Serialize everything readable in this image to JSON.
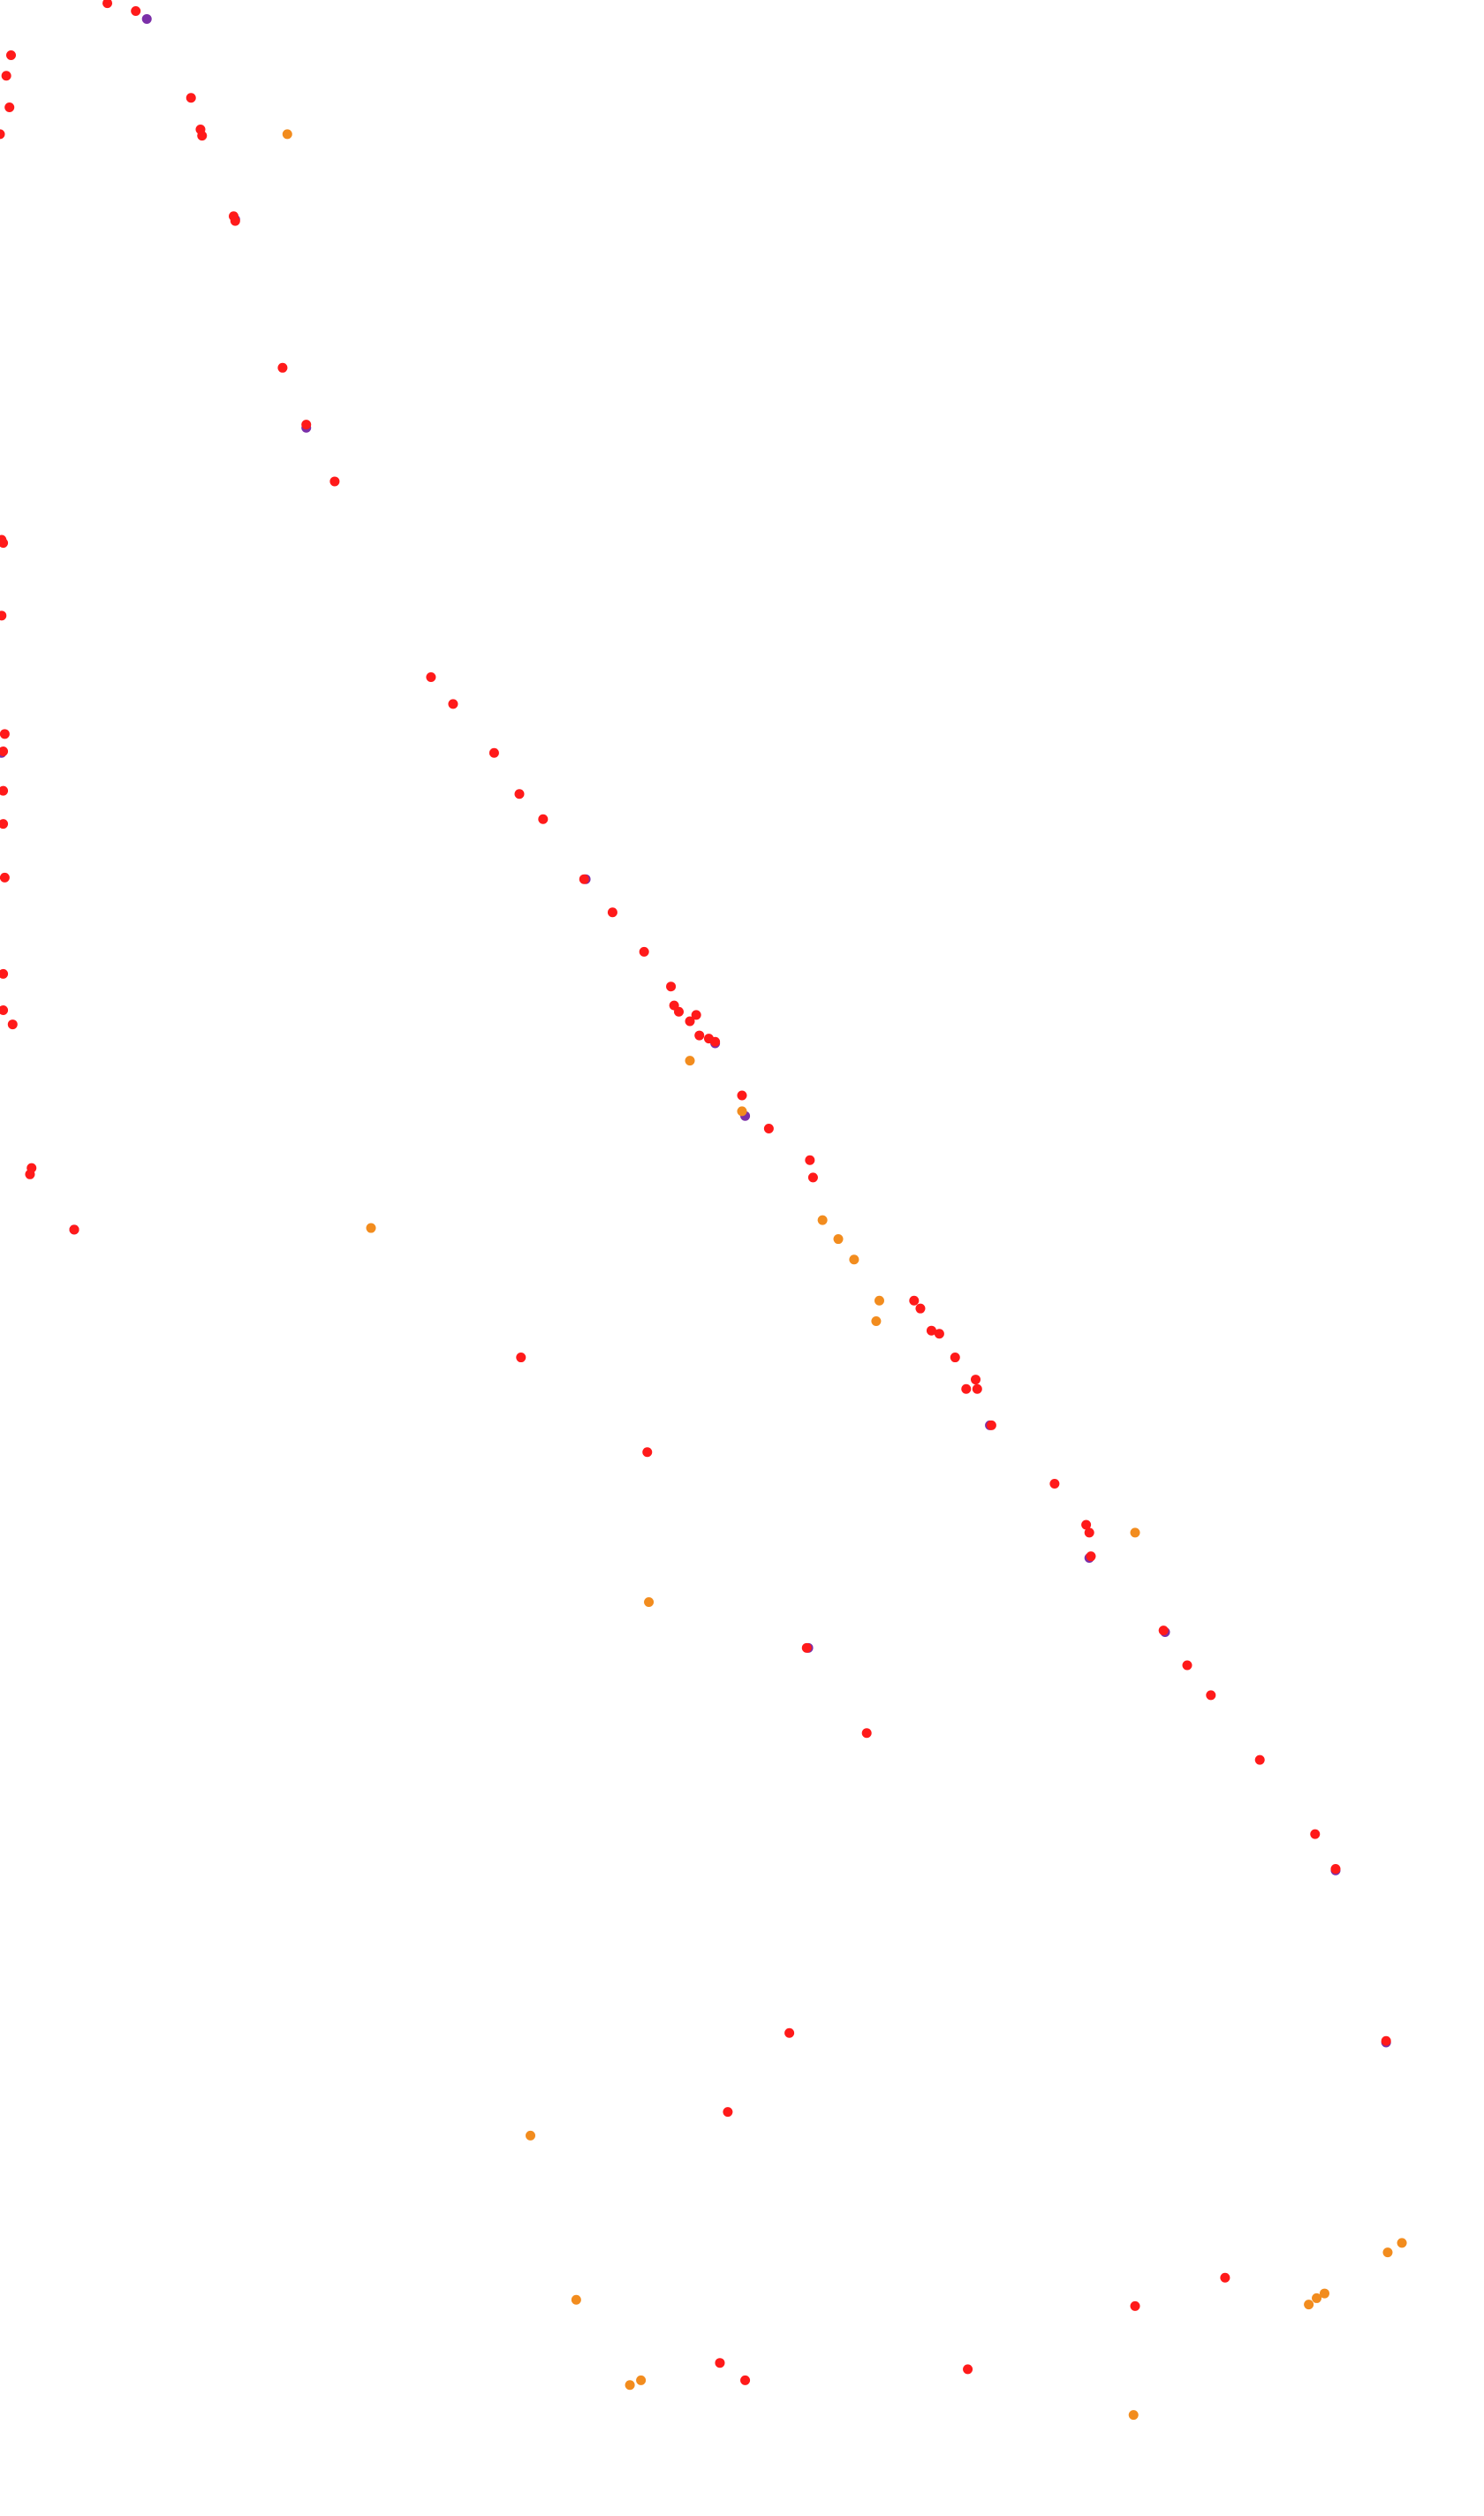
{
  "chart_data": {
    "type": "scatter",
    "xlim": [
      0,
      940
    ],
    "ylim": [
      1594,
      0
    ],
    "series": [
      {
        "color": "#7b2fa8",
        "x": [
          93,
          149,
          194,
          1,
          371,
          472,
          453,
          47,
          512,
          627,
          690,
          738,
          878,
          846
        ],
        "values": [
          12,
          139,
          271,
          477,
          557,
          707,
          661,
          779,
          1044,
          903,
          987,
          1034,
          1294,
          1185
        ]
      },
      {
        "color": "#f28c1e",
        "x": [
          182,
          235,
          437,
          470,
          521,
          531,
          541,
          557,
          555,
          719,
          411,
          336,
          365,
          399,
          406,
          718,
          829,
          834,
          839,
          879,
          888
        ],
        "values": [
          85,
          778,
          672,
          704,
          773,
          785,
          798,
          824,
          837,
          971,
          1015,
          1353,
          1457,
          1511,
          1508,
          1530,
          1460,
          1456,
          1453,
          1427,
          1421
        ]
      },
      {
        "color": "#ff1a1a",
        "x": [
          68,
          86,
          7,
          4,
          6,
          0,
          121,
          127,
          128,
          148,
          149,
          179,
          194,
          212,
          1,
          2,
          1,
          273,
          287,
          313,
          3,
          2,
          2,
          2,
          3,
          329,
          344,
          370,
          388,
          408,
          2,
          2,
          8,
          425,
          427,
          430,
          437,
          441,
          443,
          449,
          453,
          470,
          487,
          513,
          515,
          20,
          19,
          47,
          579,
          583,
          590,
          595,
          605,
          612,
          618,
          619,
          628,
          330,
          410,
          668,
          688,
          690,
          691,
          737,
          511,
          752,
          767,
          549,
          798,
          833,
          846,
          878,
          500,
          461,
          776,
          719,
          456,
          472,
          613
        ],
        "values": [
          2,
          7,
          35,
          48,
          68,
          85,
          62,
          82,
          86,
          137,
          140,
          233,
          269,
          305,
          342,
          344,
          390,
          429,
          446,
          477,
          465,
          476,
          501,
          522,
          556,
          503,
          519,
          557,
          578,
          603,
          617,
          640,
          649,
          625,
          637,
          641,
          647,
          643,
          656,
          658,
          660,
          694,
          715,
          735,
          746,
          740,
          744,
          779,
          824,
          829,
          843,
          845,
          860,
          880,
          874,
          880,
          903,
          860,
          920,
          940,
          966,
          971,
          986,
          1033,
          1044,
          1055,
          1074,
          1098,
          1115,
          1162,
          1184,
          1293,
          1288,
          1338,
          1443,
          1461,
          1497,
          1508,
          1501
        ]
      }
    ]
  }
}
